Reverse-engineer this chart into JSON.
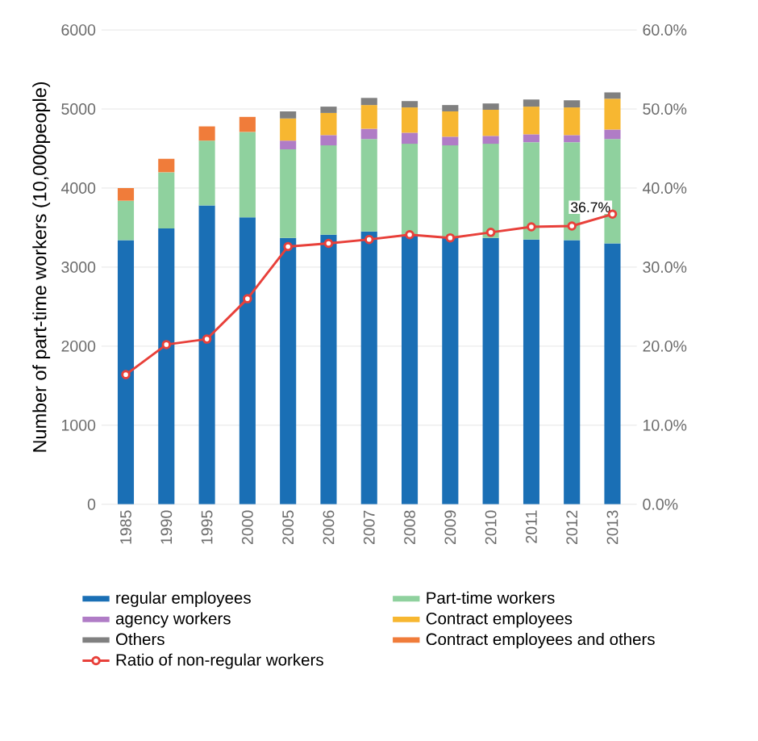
{
  "chart_data": {
    "type": "bar",
    "stacked": true,
    "ylabel": "Number of part-time workers (10,000people)",
    "categories": [
      "1985",
      "1990",
      "1995",
      "2000",
      "2005",
      "2006",
      "2007",
      "2008",
      "2009",
      "2010",
      "2011",
      "2012",
      "2013"
    ],
    "series": [
      {
        "name": "regular employees",
        "color": "#1a6fb5",
        "values": [
          3340,
          3490,
          3780,
          3630,
          3370,
          3410,
          3450,
          3410,
          3390,
          3370,
          3350,
          3340,
          3300
        ]
      },
      {
        "name": "Part-time workers",
        "color": "#8fd19e",
        "values": [
          500,
          710,
          820,
          1080,
          1120,
          1130,
          1170,
          1150,
          1150,
          1190,
          1230,
          1240,
          1320
        ]
      },
      {
        "name": "agency workers",
        "color": "#b07cc6",
        "values": [
          null,
          null,
          null,
          null,
          110,
          130,
          130,
          140,
          110,
          100,
          100,
          90,
          120
        ]
      },
      {
        "name": "Contract employees",
        "color": "#f7b731",
        "values": [
          null,
          null,
          null,
          null,
          280,
          280,
          300,
          320,
          320,
          330,
          350,
          350,
          390
        ]
      },
      {
        "name": "Others",
        "color": "#808080",
        "values": [
          null,
          null,
          null,
          null,
          90,
          80,
          90,
          80,
          80,
          80,
          90,
          90,
          80
        ]
      },
      {
        "name": "Contract employees and others",
        "color": "#f07c3a",
        "values": [
          160,
          170,
          180,
          190,
          null,
          null,
          null,
          null,
          null,
          null,
          null,
          null,
          null
        ]
      },
      {
        "name": "Ratio of non-regular workers",
        "type": "line",
        "axis": "y2",
        "color": "#e8403a",
        "marker": "circle",
        "values": [
          16.4,
          20.2,
          20.9,
          26.0,
          32.6,
          33.0,
          33.5,
          34.1,
          33.7,
          34.4,
          35.1,
          35.2,
          36.7
        ],
        "value_labels": [
          null,
          null,
          null,
          null,
          null,
          null,
          null,
          null,
          null,
          null,
          null,
          null,
          "36.7%"
        ]
      }
    ],
    "ylim": [
      0,
      6000
    ],
    "yticks": [
      0,
      1000,
      2000,
      3000,
      4000,
      5000,
      6000
    ],
    "y2lim": [
      0,
      60
    ],
    "y2ticks": [
      {
        "value": 0,
        "label": "0.0%"
      },
      {
        "value": 10,
        "label": "10.0%"
      },
      {
        "value": 20,
        "label": "20.0%"
      },
      {
        "value": 30,
        "label": "30.0%"
      },
      {
        "value": 40,
        "label": "40.0%"
      },
      {
        "value": 50,
        "label": "50.0%"
      },
      {
        "value": 60,
        "label": "60.0%"
      }
    ],
    "grid": "y",
    "legend": "bottom"
  }
}
